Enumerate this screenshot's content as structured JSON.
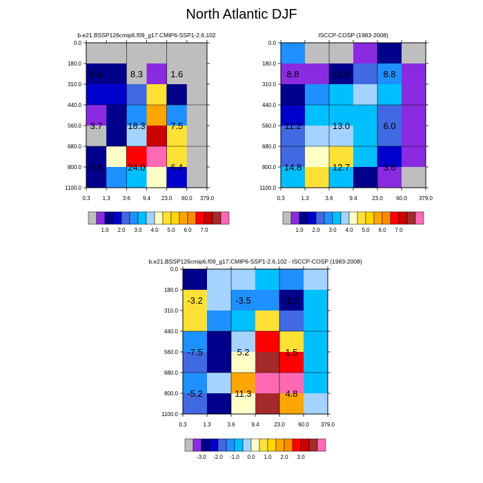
{
  "title": "North Atlantic DJF",
  "chart_data": [
    {
      "type": "heatmap",
      "title": "b.e21.BSSP126cmip6.f09_g17.CMIP6-SSP1-2.6.102",
      "x_ticks": [
        "0.3",
        "1.3",
        "3.6",
        "9.4",
        "23.0",
        "60.0",
        "379.0"
      ],
      "y_ticks": [
        "0.0",
        "180.0",
        "310.0",
        "440.0",
        "560.0",
        "680.0",
        "800.0",
        "1100.0"
      ],
      "cell_colors": [
        [
          "#bebebe",
          "#bebebe",
          "#bebebe",
          "#bebebe",
          "#bebebe",
          "#bebebe"
        ],
        [
          "#00008b",
          "#00008b",
          "#bebebe",
          "#8a2be2",
          "#bebebe",
          "#bebebe"
        ],
        [
          "#0000cd",
          "#0000cd",
          "#4169e1",
          "#ffe135",
          "#00008b",
          "#bebebe"
        ],
        [
          "#8a2be2",
          "#00008b",
          "#1e90ff",
          "#ffa500",
          "#1e90ff",
          "#bebebe"
        ],
        [
          "#bebebe",
          "#00008b",
          "#a4d3ff",
          "#cd0000",
          "#ffe135",
          "#bebebe"
        ],
        [
          "#00008b",
          "#ffffc8",
          "#ff0000",
          "#ff69b4",
          "#ffe135",
          "#bebebe"
        ],
        [
          "#00008b",
          "#1e90ff",
          "#00bfff",
          "#ffffc8",
          "#0000cd",
          "#bebebe"
        ]
      ],
      "annotations": [
        {
          "text": "5.6",
          "col": 0.5,
          "row": 1.5
        },
        {
          "text": "8.3",
          "col": 2.5,
          "row": 1.5
        },
        {
          "text": "1.6",
          "col": 4.5,
          "row": 1.5
        },
        {
          "text": "3.7",
          "col": 0.5,
          "row": 4.0
        },
        {
          "text": "18.3",
          "col": 2.5,
          "row": 4.0
        },
        {
          "text": "7.5",
          "col": 4.5,
          "row": 4.0
        },
        {
          "text": "3.6",
          "col": 0.5,
          "row": 6.0
        },
        {
          "text": "24.0",
          "col": 2.5,
          "row": 6.0
        },
        {
          "text": "6.4",
          "col": 4.5,
          "row": 6.0
        }
      ],
      "colorbar": {
        "colors": [
          "#bebebe",
          "#8a2be2",
          "#00008b",
          "#0000cd",
          "#4169e1",
          "#1e90ff",
          "#00bfff",
          "#a4d3ff",
          "#ffffc8",
          "#ffe135",
          "#ffd700",
          "#ffa500",
          "#ff8c00",
          "#ff0000",
          "#cd0000",
          "#a52a2a",
          "#ff69b4"
        ],
        "tick_labels": [
          "1.0",
          "2.0",
          "3.0",
          "4.0",
          "5.0",
          "6.0",
          "7.0"
        ],
        "tick_boundaries": [
          2,
          4,
          6,
          8,
          10,
          12,
          14
        ]
      }
    },
    {
      "type": "heatmap",
      "title": "ISCCP-COSP (1983-2008)",
      "x_ticks": [
        "0.3",
        "1.3",
        "3.6",
        "9.4",
        "23.0",
        "60.0",
        "379.0"
      ],
      "y_ticks": [
        "0.0",
        "180.0",
        "310.0",
        "440.0",
        "560.0",
        "680.0",
        "800.0",
        "1100.0"
      ],
      "cell_colors": [
        [
          "#1e90ff",
          "#bebebe",
          "#bebebe",
          "#8a2be2",
          "#00008b",
          "#bebebe"
        ],
        [
          "#8a2be2",
          "#8a2be2",
          "#00008b",
          "#4169e1",
          "#1e90ff",
          "#8a2be2"
        ],
        [
          "#00008b",
          "#1e90ff",
          "#00bfff",
          "#a4d3ff",
          "#00bfff",
          "#8a2be2"
        ],
        [
          "#0000cd",
          "#00bfff",
          "#00bfff",
          "#00bfff",
          "#4169e1",
          "#8a2be2"
        ],
        [
          "#4169e1",
          "#a4d3ff",
          "#a4d3ff",
          "#00bfff",
          "#4169e1",
          "#8a2be2"
        ],
        [
          "#4169e1",
          "#ffffc8",
          "#ffe135",
          "#00bfff",
          "#0000cd",
          "#8a2be2"
        ],
        [
          "#00bfff",
          "#ffe135",
          "#00bfff",
          "#00008b",
          "#8a2be2",
          "#bebebe"
        ]
      ],
      "annotations": [
        {
          "text": "8.8",
          "col": 0.5,
          "row": 1.5
        },
        {
          "text": "11.8",
          "col": 2.5,
          "row": 1.5
        },
        {
          "text": "8.8",
          "col": 4.5,
          "row": 1.5
        },
        {
          "text": "11.2",
          "col": 0.5,
          "row": 4.0
        },
        {
          "text": "13.0",
          "col": 2.5,
          "row": 4.0
        },
        {
          "text": "6.0",
          "col": 4.5,
          "row": 4.0
        },
        {
          "text": "14.8",
          "col": 0.5,
          "row": 6.0
        },
        {
          "text": "12.7",
          "col": 2.5,
          "row": 6.0
        },
        {
          "text": "3.6",
          "col": 4.5,
          "row": 6.0
        }
      ],
      "colorbar": {
        "colors": [
          "#bebebe",
          "#8a2be2",
          "#00008b",
          "#0000cd",
          "#4169e1",
          "#1e90ff",
          "#00bfff",
          "#a4d3ff",
          "#ffffc8",
          "#ffe135",
          "#ffd700",
          "#ffa500",
          "#ff8c00",
          "#ff0000",
          "#cd0000",
          "#a52a2a",
          "#ff69b4"
        ],
        "tick_labels": [
          "1.0",
          "2.0",
          "3.0",
          "4.0",
          "5.0",
          "6.0",
          "7.0"
        ],
        "tick_boundaries": [
          2,
          4,
          6,
          8,
          10,
          12,
          14
        ]
      }
    },
    {
      "type": "heatmap",
      "title": "b.e21.BSSP126cmip6.f09_g17.CMIP6-SSP1-2.6.102 - ISCCP-COSP (1983-2008)",
      "x_ticks": [
        "0.3",
        "1.3",
        "3.6",
        "9.4",
        "23.0",
        "60.0",
        "379.0"
      ],
      "y_ticks": [
        "0.0",
        "180.0",
        "310.0",
        "440.0",
        "560.0",
        "680.0",
        "800.0",
        "1100.0"
      ],
      "cell_colors": [
        [
          "#00008b",
          "#a4d3ff",
          "#a4d3ff",
          "#00bfff",
          "#1e90ff",
          "#a4d3ff"
        ],
        [
          "#ffe135",
          "#a4d3ff",
          "#1e90ff",
          "#1e90ff",
          "#00008b",
          "#00bfff"
        ],
        [
          "#ffe135",
          "#1e90ff",
          "#00bfff",
          "#ffe135",
          "#4169e1",
          "#00bfff"
        ],
        [
          "#1e90ff",
          "#00008b",
          "#a4d3ff",
          "#ff0000",
          "#ffe135",
          "#00bfff"
        ],
        [
          "#4169e1",
          "#00008b",
          "#ffffc8",
          "#a52a2a",
          "#ff0000",
          "#00bfff"
        ],
        [
          "#1e90ff",
          "#a4d3ff",
          "#ffa500",
          "#ff69b4",
          "#ff69b4",
          "#00bfff"
        ],
        [
          "#4169e1",
          "#00008b",
          "#ffffc8",
          "#a52a2a",
          "#ffa500",
          "#a4d3ff"
        ]
      ],
      "annotations": [
        {
          "text": "-3.2",
          "col": 0.5,
          "row": 1.5
        },
        {
          "text": "-3.5",
          "col": 2.5,
          "row": 1.5
        },
        {
          "text": "-2.2",
          "col": 4.5,
          "row": 1.5
        },
        {
          "text": "-7.5",
          "col": 0.5,
          "row": 4.0
        },
        {
          "text": "5.2",
          "col": 2.5,
          "row": 4.0
        },
        {
          "text": "1.5",
          "col": 4.5,
          "row": 4.0
        },
        {
          "text": "-5.2",
          "col": 0.5,
          "row": 6.0
        },
        {
          "text": "11.3",
          "col": 2.5,
          "row": 6.0
        },
        {
          "text": "4.8",
          "col": 4.5,
          "row": 6.0
        }
      ],
      "colorbar": {
        "colors": [
          "#bebebe",
          "#8a2be2",
          "#00008b",
          "#0000cd",
          "#4169e1",
          "#1e90ff",
          "#00bfff",
          "#a4d3ff",
          "#ffffc8",
          "#ffe135",
          "#ffd700",
          "#ffa500",
          "#ff8c00",
          "#ff0000",
          "#cd0000",
          "#a52a2a",
          "#ff69b4"
        ],
        "tick_labels": [
          "-3.0",
          "-2.0",
          "-1.0",
          "0.0",
          "1.0",
          "2.0",
          "3.0"
        ],
        "tick_boundaries": [
          2,
          4,
          6,
          8,
          10,
          12,
          14
        ]
      }
    }
  ]
}
